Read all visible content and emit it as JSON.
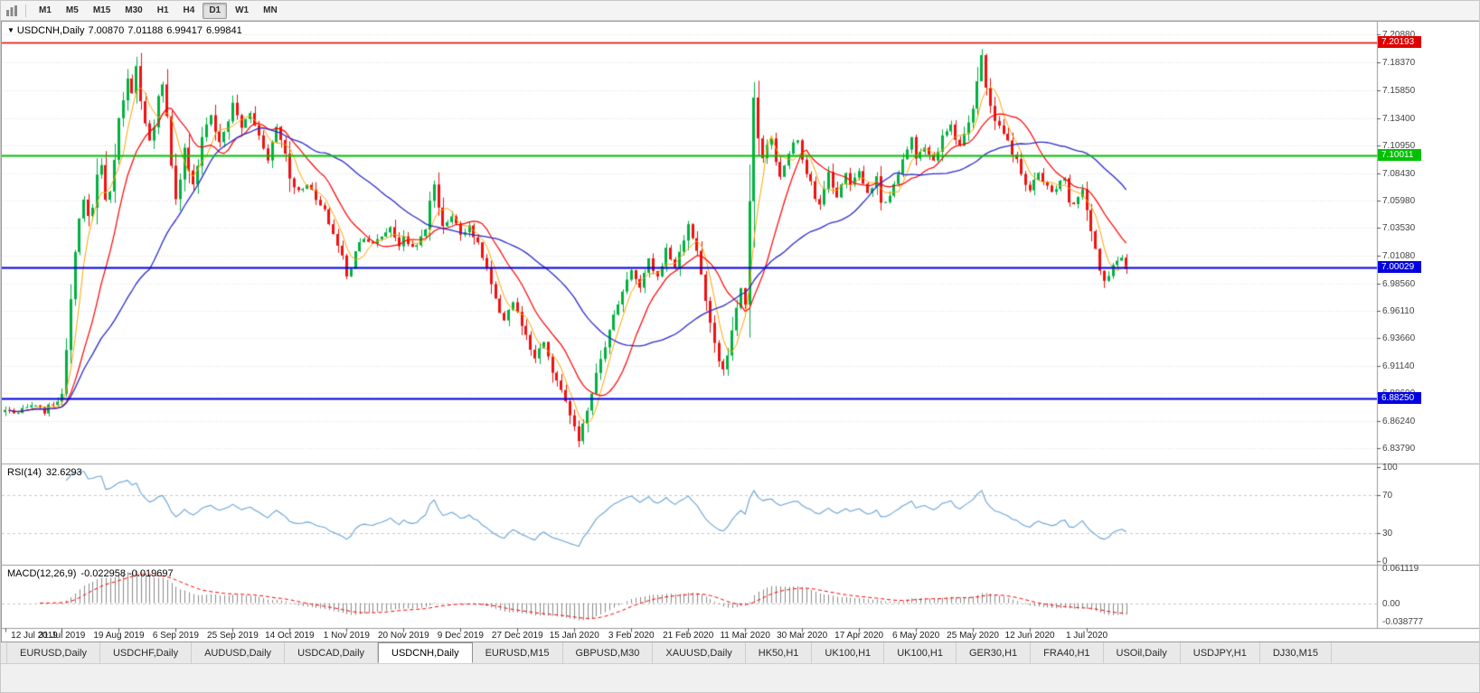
{
  "toolbar": {
    "timeframes": [
      "M1",
      "M5",
      "M15",
      "M30",
      "H1",
      "H4",
      "D1",
      "W1",
      "MN"
    ],
    "active": "D1"
  },
  "chart": {
    "title": {
      "symbol": "USDCNH,Daily",
      "open": "7.00870",
      "high": "7.01188",
      "low": "6.99417",
      "close": "6.99841"
    },
    "price_axis": [
      "7.20880",
      "7.18370",
      "7.15850",
      "7.13400",
      "7.10950",
      "7.08430",
      "7.05980",
      "7.03530",
      "7.01080",
      "6.98560",
      "6.96110",
      "6.93660",
      "6.91140",
      "6.88690",
      "6.86240",
      "6.83790"
    ],
    "hlines": [
      {
        "value": "7.20193",
        "price": 7.20193,
        "color": "#e00000",
        "width": 1.5
      },
      {
        "value": "7.10011",
        "price": 7.10011,
        "color": "#00c000",
        "width": 2
      },
      {
        "value": "7.00029",
        "price": 7.00029,
        "color": "#0000e0",
        "width": 2
      },
      {
        "value": "6.88250",
        "price": 6.8825,
        "color": "#0000e0",
        "width": 2
      }
    ],
    "dates": [
      "12 Jul 2019",
      "31 Jul 2019",
      "19 Aug 2019",
      "6 Sep 2019",
      "25 Sep 2019",
      "14 Oct 2019",
      "1 Nov 2019",
      "20 Nov 2019",
      "9 Dec 2019",
      "27 Dec 2019",
      "15 Jan 2020",
      "3 Feb 2020",
      "21 Feb 2020",
      "11 Mar 2020",
      "30 Mar 2020",
      "17 Apr 2020",
      "6 May 2020",
      "25 May 2020",
      "12 Jun 2020",
      "1 Jul 2020"
    ]
  },
  "rsi": {
    "label": "RSI(14)",
    "value": "32.6293",
    "axis": [
      {
        "text": "100",
        "v": 100
      },
      {
        "text": "70",
        "v": 70
      },
      {
        "text": "30",
        "v": 30
      },
      {
        "text": "0",
        "v": 0
      }
    ],
    "levels": [
      70,
      30
    ]
  },
  "macd": {
    "label": "MACD(12,26,9)",
    "values": "-0.022958 -0.019697",
    "axis": [
      {
        "text": "0.061119",
        "v": 0.061119
      },
      {
        "text": "0.00",
        "v": 0
      },
      {
        "text": "-0.038777",
        "v": -0.038777
      }
    ]
  },
  "tabs": {
    "active_index": 4,
    "items": [
      "EURUSD,Daily",
      "USDCHF,Daily",
      "AUDUSD,Daily",
      "USDCAD,Daily",
      "USDCNH,Daily",
      "EURUSD,M15",
      "GBPUSD,M30",
      "XAUUSD,Daily",
      "HK50,H1",
      "UK100,H1",
      "UK100,H1",
      "GER30,H1",
      "FRA40,H1",
      "USOil,Daily",
      "USDJPY,H1",
      "DJ30,M15"
    ]
  },
  "chart_data": {
    "type": "candlestick",
    "symbol": "USDCNH",
    "timeframe": "Daily",
    "bars": 257,
    "bars_per_label": 13,
    "ylim": [
      6.828,
      7.214
    ],
    "last_candle": {
      "open": 7.0087,
      "high": 7.01188,
      "low": 6.99417,
      "close": 6.99841
    },
    "extremes": {
      "high": 7.196,
      "high_bar": 223,
      "low": 6.8385,
      "low_bar": 131
    },
    "close_anchors": [
      [
        0,
        6.872
      ],
      [
        3,
        6.869
      ],
      [
        6,
        6.876
      ],
      [
        9,
        6.871
      ],
      [
        11,
        6.878
      ],
      [
        13,
        6.884
      ],
      [
        14,
        6.928
      ],
      [
        15,
        6.972
      ],
      [
        16,
        7.016
      ],
      [
        17,
        7.046
      ],
      [
        18,
        7.06
      ],
      [
        19,
        7.044
      ],
      [
        20,
        7.052
      ],
      [
        21,
        7.082
      ],
      [
        22,
        7.094
      ],
      [
        23,
        7.06
      ],
      [
        24,
        7.068
      ],
      [
        25,
        7.098
      ],
      [
        26,
        7.132
      ],
      [
        27,
        7.152
      ],
      [
        28,
        7.168
      ],
      [
        29,
        7.158
      ],
      [
        30,
        7.183
      ],
      [
        31,
        7.148
      ],
      [
        32,
        7.128
      ],
      [
        33,
        7.112
      ],
      [
        34,
        7.124
      ],
      [
        35,
        7.152
      ],
      [
        36,
        7.163
      ],
      [
        37,
        7.138
      ],
      [
        38,
        7.092
      ],
      [
        39,
        7.063
      ],
      [
        40,
        7.078
      ],
      [
        41,
        7.108
      ],
      [
        42,
        7.088
      ],
      [
        43,
        7.073
      ],
      [
        44,
        7.092
      ],
      [
        45,
        7.115
      ],
      [
        46,
        7.128
      ],
      [
        47,
        7.138
      ],
      [
        48,
        7.122
      ],
      [
        49,
        7.112
      ],
      [
        50,
        7.122
      ],
      [
        51,
        7.132
      ],
      [
        52,
        7.146
      ],
      [
        53,
        7.136
      ],
      [
        54,
        7.126
      ],
      [
        56,
        7.138
      ],
      [
        58,
        7.118
      ],
      [
        60,
        7.098
      ],
      [
        62,
        7.126
      ],
      [
        64,
        7.103
      ],
      [
        65,
        7.08
      ],
      [
        67,
        7.068
      ],
      [
        69,
        7.076
      ],
      [
        71,
        7.06
      ],
      [
        73,
        7.05
      ],
      [
        75,
        7.03
      ],
      [
        77,
        7.01
      ],
      [
        78,
        6.991
      ],
      [
        79,
        7.0
      ],
      [
        80,
        7.016
      ],
      [
        82,
        7.028
      ],
      [
        84,
        7.02
      ],
      [
        86,
        7.028
      ],
      [
        88,
        7.036
      ],
      [
        90,
        7.02
      ],
      [
        91,
        7.026
      ],
      [
        93,
        7.018
      ],
      [
        95,
        7.026
      ],
      [
        96,
        7.033
      ],
      [
        97,
        7.06
      ],
      [
        98,
        7.076
      ],
      [
        99,
        7.052
      ],
      [
        100,
        7.038
      ],
      [
        102,
        7.046
      ],
      [
        104,
        7.03
      ],
      [
        106,
        7.038
      ],
      [
        108,
        7.02
      ],
      [
        110,
        6.999
      ],
      [
        112,
        6.97
      ],
      [
        113,
        6.958
      ],
      [
        114,
        6.95
      ],
      [
        115,
        6.963
      ],
      [
        116,
        6.97
      ],
      [
        117,
        6.96
      ],
      [
        118,
        6.948
      ],
      [
        119,
        6.938
      ],
      [
        120,
        6.926
      ],
      [
        121,
        6.916
      ],
      [
        122,
        6.926
      ],
      [
        123,
        6.933
      ],
      [
        124,
        6.918
      ],
      [
        125,
        6.906
      ],
      [
        126,
        6.898
      ],
      [
        127,
        6.888
      ],
      [
        128,
        6.88
      ],
      [
        129,
        6.868
      ],
      [
        130,
        6.856
      ],
      [
        131,
        6.842
      ],
      [
        132,
        6.858
      ],
      [
        133,
        6.873
      ],
      [
        134,
        6.888
      ],
      [
        135,
        6.906
      ],
      [
        136,
        6.92
      ],
      [
        137,
        6.93
      ],
      [
        138,
        6.943
      ],
      [
        139,
        6.956
      ],
      [
        140,
        6.968
      ],
      [
        141,
        6.978
      ],
      [
        142,
        6.99
      ],
      [
        143,
        6.999
      ],
      [
        144,
        6.989
      ],
      [
        145,
        6.981
      ],
      [
        146,
        6.993
      ],
      [
        147,
        7.006
      ],
      [
        148,
        6.998
      ],
      [
        149,
        6.991
      ],
      [
        150,
        7.003
      ],
      [
        151,
        7.016
      ],
      [
        152,
        7.008
      ],
      [
        153,
        7.001
      ],
      [
        154,
        7.013
      ],
      [
        155,
        7.026
      ],
      [
        156,
        7.037
      ],
      [
        157,
        7.027
      ],
      [
        158,
        7.016
      ],
      [
        159,
        6.993
      ],
      [
        160,
        6.97
      ],
      [
        161,
        6.95
      ],
      [
        162,
        6.93
      ],
      [
        163,
        6.916
      ],
      [
        164,
        6.906
      ],
      [
        165,
        6.923
      ],
      [
        166,
        6.943
      ],
      [
        167,
        6.963
      ],
      [
        168,
        6.983
      ],
      [
        169,
        6.966
      ],
      [
        170,
        7.058
      ],
      [
        171,
        7.152
      ],
      [
        172,
        7.118
      ],
      [
        173,
        7.096
      ],
      [
        174,
        7.11
      ],
      [
        175,
        7.116
      ],
      [
        176,
        7.093
      ],
      [
        177,
        7.08
      ],
      [
        178,
        7.093
      ],
      [
        179,
        7.1
      ],
      [
        180,
        7.113
      ],
      [
        181,
        7.116
      ],
      [
        182,
        7.098
      ],
      [
        183,
        7.086
      ],
      [
        184,
        7.076
      ],
      [
        185,
        7.06
      ],
      [
        186,
        7.056
      ],
      [
        187,
        7.073
      ],
      [
        188,
        7.086
      ],
      [
        189,
        7.07
      ],
      [
        190,
        7.063
      ],
      [
        191,
        7.076
      ],
      [
        192,
        7.086
      ],
      [
        193,
        7.076
      ],
      [
        194,
        7.08
      ],
      [
        195,
        7.086
      ],
      [
        196,
        7.076
      ],
      [
        197,
        7.066
      ],
      [
        198,
        7.073
      ],
      [
        199,
        7.08
      ],
      [
        200,
        7.06
      ],
      [
        201,
        7.056
      ],
      [
        202,
        7.066
      ],
      [
        203,
        7.076
      ],
      [
        204,
        7.086
      ],
      [
        205,
        7.096
      ],
      [
        206,
        7.106
      ],
      [
        207,
        7.116
      ],
      [
        208,
        7.1
      ],
      [
        209,
        7.106
      ],
      [
        210,
        7.11
      ],
      [
        211,
        7.103
      ],
      [
        212,
        7.096
      ],
      [
        213,
        7.106
      ],
      [
        214,
        7.116
      ],
      [
        215,
        7.123
      ],
      [
        216,
        7.13
      ],
      [
        217,
        7.116
      ],
      [
        218,
        7.11
      ],
      [
        219,
        7.12
      ],
      [
        220,
        7.13
      ],
      [
        221,
        7.14
      ],
      [
        222,
        7.166
      ],
      [
        223,
        7.19
      ],
      [
        224,
        7.163
      ],
      [
        225,
        7.146
      ],
      [
        226,
        7.13
      ],
      [
        227,
        7.126
      ],
      [
        228,
        7.12
      ],
      [
        229,
        7.116
      ],
      [
        230,
        7.1
      ],
      [
        231,
        7.096
      ],
      [
        232,
        7.086
      ],
      [
        233,
        7.076
      ],
      [
        234,
        7.07
      ],
      [
        235,
        7.08
      ],
      [
        236,
        7.086
      ],
      [
        237,
        7.076
      ],
      [
        238,
        7.073
      ],
      [
        239,
        7.066
      ],
      [
        240,
        7.07
      ],
      [
        241,
        7.076
      ],
      [
        242,
        7.08
      ],
      [
        243,
        7.06
      ],
      [
        244,
        7.056
      ],
      [
        245,
        7.063
      ],
      [
        246,
        7.07
      ],
      [
        247,
        7.05
      ],
      [
        248,
        7.03
      ],
      [
        249,
        7.016
      ],
      [
        250,
        6.996
      ],
      [
        251,
        6.986
      ],
      [
        252,
        6.993
      ],
      [
        253,
        7.0
      ],
      [
        254,
        7.006
      ],
      [
        255,
        7.0087
      ],
      [
        256,
        6.99841
      ]
    ],
    "overlays": [
      {
        "name": "ma-fast",
        "period": 5,
        "color": "#ffa500"
      },
      {
        "name": "ma-mid",
        "period": 13,
        "color": "#ff0000"
      },
      {
        "name": "ma-slow",
        "period": 34,
        "color": "#2b2bcc"
      }
    ],
    "indicators": [
      {
        "name": "RSI",
        "period": 14,
        "last": 32.6293,
        "color": "#6ba3d6",
        "range": [
          0,
          100
        ]
      },
      {
        "name": "MACD",
        "fast": 12,
        "slow": 26,
        "signal": 9,
        "last_main": -0.022958,
        "last_signal": -0.019697,
        "hist_color": "#8a8a8a",
        "signal_color": "#ff0000",
        "range": [
          -0.038777,
          0.061119
        ]
      }
    ],
    "colors": {
      "up": "#00b140",
      "down": "#ee1111",
      "grid": "#dcdcdc",
      "separator": "#9a9a9a"
    }
  }
}
